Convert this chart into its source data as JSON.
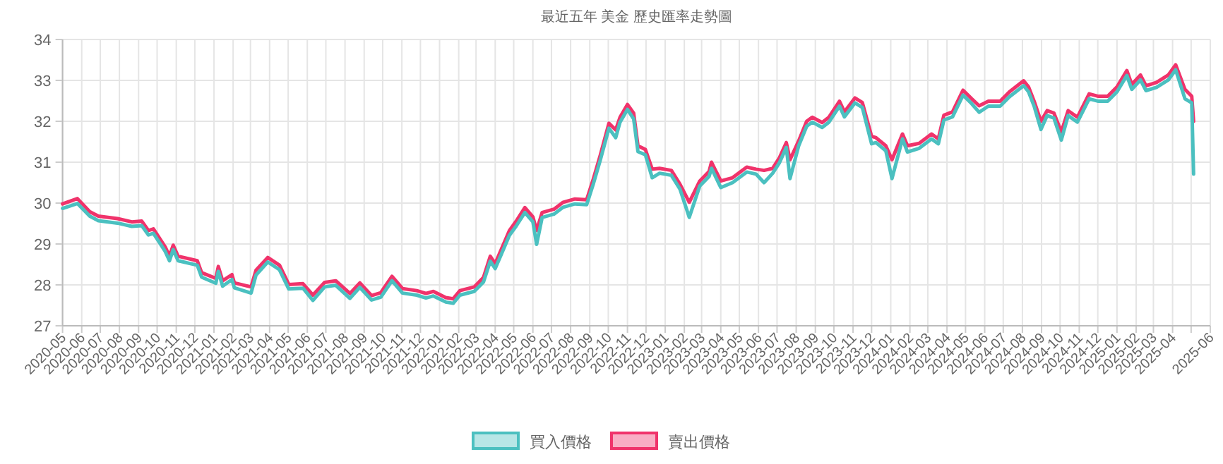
{
  "chart_data": {
    "type": "line",
    "title": "最近五年 美金 歷史匯率走勢圖",
    "x": [
      "2020-05-01",
      "2020-05-25",
      "2020-06-14",
      "2020-06-28",
      "2020-07-29",
      "2020-08-21",
      "2020-09-06",
      "2020-09-17",
      "2020-09-25",
      "2020-10-14",
      "2020-10-21",
      "2020-10-27",
      "2020-11-04",
      "2020-12-05",
      "2020-12-12",
      "2021-01-04",
      "2021-01-08",
      "2021-01-15",
      "2021-01-30",
      "2021-02-03",
      "2021-03-02",
      "2021-03-10",
      "2021-03-29",
      "2021-04-17",
      "2021-05-02",
      "2021-05-25",
      "2021-06-10",
      "2021-06-29",
      "2021-07-17",
      "2021-08-09",
      "2021-08-25",
      "2021-09-13",
      "2021-09-28",
      "2021-10-16",
      "2021-11-02",
      "2021-11-25",
      "2021-12-10",
      "2021-12-22",
      "2022-01-11",
      "2022-01-23",
      "2022-02-03",
      "2022-02-26",
      "2022-03-13",
      "2022-03-24",
      "2022-04-01",
      "2022-04-09",
      "2022-04-24",
      "2022-05-05",
      "2022-05-19",
      "2022-06-01",
      "2022-06-07",
      "2022-06-16",
      "2022-07-05",
      "2022-07-20",
      "2022-08-08",
      "2022-08-27",
      "2022-09-07",
      "2022-09-18",
      "2022-10-02",
      "2022-10-13",
      "2022-10-20",
      "2022-11-01",
      "2022-11-11",
      "2022-11-18",
      "2022-11-30",
      "2022-12-11",
      "2022-12-23",
      "2023-01-11",
      "2023-01-25",
      "2023-02-09",
      "2023-02-26",
      "2023-03-13",
      "2023-03-17",
      "2023-04-01",
      "2023-04-20",
      "2023-05-13",
      "2023-05-28",
      "2023-06-10",
      "2023-06-24",
      "2023-07-05",
      "2023-07-16",
      "2023-07-22",
      "2023-08-05",
      "2023-08-18",
      "2023-08-27",
      "2023-09-12",
      "2023-09-23",
      "2023-10-10",
      "2023-10-18",
      "2023-11-04",
      "2023-11-16",
      "2023-12-01",
      "2023-12-08",
      "2023-12-24",
      "2024-01-03",
      "2024-01-20",
      "2024-01-28",
      "2024-02-16",
      "2024-03-07",
      "2024-03-18",
      "2024-03-27",
      "2024-04-10",
      "2024-04-27",
      "2024-05-11",
      "2024-05-23",
      "2024-06-07",
      "2024-06-26",
      "2024-07-11",
      "2024-08-03",
      "2024-08-11",
      "2024-08-20",
      "2024-08-31",
      "2024-09-10",
      "2024-09-21",
      "2024-10-03",
      "2024-10-14",
      "2024-10-29",
      "2024-11-17",
      "2024-12-02",
      "2024-12-17",
      "2025-01-01",
      "2025-01-17",
      "2025-01-25",
      "2025-02-08",
      "2025-02-17",
      "2025-03-06",
      "2025-03-25",
      "2025-04-06",
      "2025-04-21",
      "2025-05-02",
      "2025-05-05"
    ],
    "series": [
      {
        "name": "買入價格",
        "color": "#4bc0c0",
        "values": [
          29.87,
          29.99,
          29.68,
          29.57,
          29.51,
          29.43,
          29.45,
          29.22,
          29.26,
          28.82,
          28.59,
          28.86,
          28.59,
          28.48,
          28.19,
          28.04,
          28.33,
          27.97,
          28.13,
          27.93,
          27.8,
          28.24,
          28.56,
          28.37,
          27.9,
          27.92,
          27.62,
          27.95,
          27.99,
          27.67,
          27.94,
          27.63,
          27.7,
          28.1,
          27.8,
          27.75,
          27.68,
          27.73,
          27.58,
          27.55,
          27.75,
          27.84,
          28.07,
          28.58,
          28.4,
          28.68,
          29.21,
          29.44,
          29.77,
          29.54,
          28.99,
          29.65,
          29.73,
          29.9,
          29.98,
          29.96,
          30.48,
          31.05,
          31.83,
          31.6,
          31.98,
          32.29,
          32.06,
          31.26,
          31.18,
          30.62,
          30.73,
          30.68,
          30.34,
          29.65,
          30.42,
          30.65,
          30.85,
          30.38,
          30.5,
          30.76,
          30.71,
          30.5,
          30.73,
          30.99,
          31.36,
          30.6,
          31.4,
          31.88,
          31.98,
          31.85,
          31.98,
          32.37,
          32.11,
          32.45,
          32.34,
          31.45,
          31.48,
          31.28,
          30.6,
          31.57,
          31.25,
          31.34,
          31.57,
          31.45,
          32.03,
          32.11,
          32.64,
          32.43,
          32.22,
          32.37,
          32.37,
          32.6,
          32.87,
          32.72,
          32.37,
          31.8,
          32.14,
          32.08,
          31.54,
          32.14,
          31.98,
          32.55,
          32.49,
          32.49,
          32.72,
          33.12,
          32.78,
          33.01,
          32.75,
          32.83,
          33.01,
          33.26,
          32.55,
          32.45,
          30.71
        ]
      },
      {
        "name": "賣出價格",
        "color": "#f0336b",
        "values": [
          29.98,
          30.11,
          29.79,
          29.68,
          29.62,
          29.54,
          29.56,
          29.33,
          29.37,
          28.93,
          28.7,
          28.97,
          28.7,
          28.59,
          28.3,
          28.16,
          28.45,
          28.1,
          28.25,
          28.05,
          27.95,
          28.36,
          28.67,
          28.48,
          28.01,
          28.03,
          27.75,
          28.06,
          28.1,
          27.79,
          28.05,
          27.74,
          27.81,
          28.21,
          27.91,
          27.86,
          27.79,
          27.84,
          27.69,
          27.66,
          27.86,
          27.95,
          28.18,
          28.7,
          28.52,
          28.8,
          29.33,
          29.56,
          29.89,
          29.66,
          29.33,
          29.77,
          29.85,
          30.02,
          30.1,
          30.08,
          30.6,
          31.17,
          31.95,
          31.79,
          32.1,
          32.41,
          32.2,
          31.4,
          31.31,
          30.83,
          30.85,
          30.8,
          30.46,
          30.02,
          30.54,
          30.77,
          31.0,
          30.54,
          30.62,
          30.88,
          30.83,
          30.8,
          30.85,
          31.11,
          31.48,
          31.06,
          31.52,
          32.0,
          32.1,
          31.97,
          32.1,
          32.49,
          32.23,
          32.57,
          32.46,
          31.63,
          31.6,
          31.4,
          31.06,
          31.69,
          31.4,
          31.46,
          31.69,
          31.57,
          32.15,
          32.23,
          32.76,
          32.55,
          32.38,
          32.49,
          32.49,
          32.72,
          32.99,
          32.84,
          32.49,
          32.0,
          32.26,
          32.2,
          31.74,
          32.26,
          32.1,
          32.67,
          32.61,
          32.61,
          32.84,
          33.24,
          32.9,
          33.13,
          32.87,
          32.95,
          33.13,
          33.38,
          32.78,
          32.61,
          32.0
        ]
      }
    ],
    "xlim": [
      "2020-05",
      "2025-06"
    ],
    "xticks": [
      "2020-05",
      "2020-06",
      "2020-07",
      "2020-08",
      "2020-09",
      "2020-10",
      "2020-11",
      "2020-12",
      "2021-01",
      "2021-02",
      "2021-03",
      "2021-04",
      "2021-05",
      "2021-06",
      "2021-07",
      "2021-08",
      "2021-09",
      "2021-10",
      "2021-11",
      "2021-12",
      "2022-01",
      "2022-02",
      "2022-03",
      "2022-04",
      "2022-05",
      "2022-06",
      "2022-07",
      "2022-08",
      "2022-09",
      "2022-10",
      "2022-11",
      "2022-12",
      "2023-01",
      "2023-02",
      "2023-03",
      "2023-04",
      "2023-05",
      "2023-06",
      "2023-07",
      "2023-08",
      "2023-09",
      "2023-10",
      "2023-11",
      "2023-12",
      "2024-01",
      "2024-02",
      "2024-03",
      "2024-04",
      "2024-05",
      "2024-06",
      "2024-07",
      "2024-08",
      "2024-09",
      "2024-10",
      "2024-11",
      "2024-12",
      "2025-01",
      "2025-02",
      "2025-03",
      "2025-04",
      {
        "value": "2025-05",
        "label": null
      },
      "2025-06"
    ],
    "ylim": [
      27,
      34
    ],
    "yticks": [
      27,
      28,
      29,
      30,
      31,
      32,
      33,
      34
    ],
    "grid": true,
    "legend": "bottom"
  }
}
